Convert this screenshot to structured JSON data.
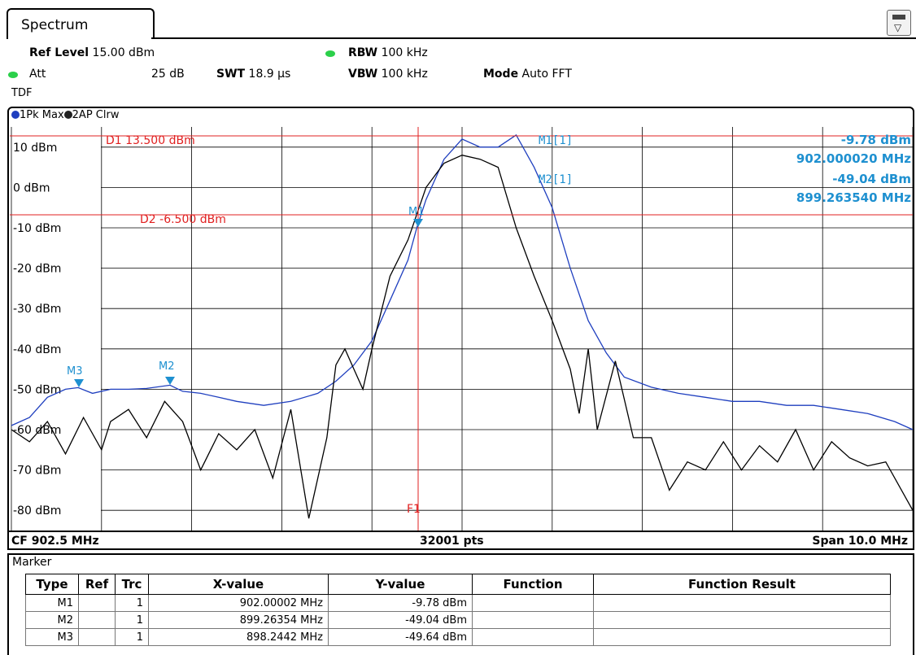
{
  "tab": {
    "label": "Spectrum"
  },
  "header": {
    "ref_level_label": "Ref Level",
    "ref_level_value": "15.00 dBm",
    "att_label": "Att",
    "att_value": "25 dB",
    "swt_label": "SWT",
    "swt_value": "18.9 µs",
    "rbw_label": "RBW",
    "rbw_value": "100 kHz",
    "vbw_label": "VBW",
    "vbw_value": "100 kHz",
    "mode_label": "Mode",
    "mode_value": "Auto FFT",
    "tdf": "TDF"
  },
  "traces": {
    "t1": "1Pk Max",
    "t2": "2AP Clrw",
    "t1_color": "#1f3fbf",
    "t2_color": "#000000"
  },
  "y_ticks": [
    "10 dBm",
    "0 dBm",
    "-10 dBm",
    "-20 dBm",
    "-30 dBm",
    "-40 dBm",
    "-50 dBm",
    "-60 dBm",
    "-70 dBm",
    "-80 dBm"
  ],
  "lines": {
    "d1": "D1  13.500 dBm",
    "d2": "D2  -6.500 dBm",
    "f1": "F1"
  },
  "marker_readout": {
    "m1_label": "M1[1]",
    "m1_level": "-9.78 dBm",
    "m1_freq": "902.000020 MHz",
    "m2_label": "M2[1]",
    "m2_level": "-49.04 dBm",
    "m2_freq": "899.263540 MHz"
  },
  "markers_on_plot": {
    "m1": "M1",
    "m2": "M2",
    "m3": "M3"
  },
  "bottom": {
    "cf": "CF 902.5 MHz",
    "pts": "32001 pts",
    "span": "Span 10.0 MHz"
  },
  "marker_table": {
    "title": "Marker",
    "headers": [
      "Type",
      "Ref",
      "Trc",
      "X-value",
      "Y-value",
      "Function",
      "Function Result"
    ],
    "rows": [
      [
        "M1",
        "",
        "1",
        "902.00002 MHz",
        "-9.78 dBm",
        "",
        ""
      ],
      [
        "M2",
        "",
        "1",
        "899.26354 MHz",
        "-49.04 dBm",
        "",
        ""
      ],
      [
        "M3",
        "",
        "1",
        "898.2442 MHz",
        "-49.64 dBm",
        "",
        ""
      ]
    ]
  },
  "colors": {
    "limit_line": "#e02020",
    "marker": "#1e90d0",
    "grid": "#000000"
  },
  "chart_data": {
    "type": "line",
    "x_unit": "MHz",
    "y_unit": "dBm",
    "xlim": [
      897.5,
      907.5
    ],
    "ylim": [
      -85,
      15
    ],
    "series": [
      {
        "name": "1Pk Max",
        "color": "#1f3fbf",
        "x": [
          897.5,
          897.7,
          897.9,
          898.1,
          898.24,
          898.4,
          898.6,
          898.8,
          899.0,
          899.26,
          899.4,
          899.6,
          899.8,
          900.0,
          900.3,
          900.6,
          900.9,
          901.1,
          901.3,
          901.5,
          901.7,
          901.9,
          902.0,
          902.1,
          902.3,
          902.5,
          902.7,
          902.9,
          903.1,
          903.3,
          903.5,
          903.7,
          903.9,
          904.1,
          904.3,
          904.6,
          904.9,
          905.2,
          905.5,
          905.8,
          906.1,
          906.4,
          906.7,
          907.0,
          907.3,
          907.5
        ],
        "y": [
          -59,
          -57,
          -52,
          -50,
          -49.6,
          -51,
          -50,
          -50,
          -49.8,
          -49,
          -50.5,
          -51,
          -52,
          -53,
          -54,
          -53,
          -51,
          -48,
          -44,
          -38,
          -28,
          -18,
          -9.8,
          -3,
          7,
          12,
          10,
          10,
          13,
          5,
          -5,
          -20,
          -33,
          -41,
          -47,
          -49.5,
          -51,
          -52,
          -53,
          -53,
          -54,
          -54,
          -55,
          -56,
          -58,
          -60
        ]
      },
      {
        "name": "2AP Clrw",
        "color": "#000000",
        "x": [
          897.5,
          897.7,
          897.9,
          898.1,
          898.3,
          898.5,
          898.6,
          898.8,
          899.0,
          899.2,
          899.4,
          899.6,
          899.8,
          900.0,
          900.2,
          900.4,
          900.6,
          900.8,
          901.0,
          901.1,
          901.2,
          901.3,
          901.4,
          901.5,
          901.7,
          901.9,
          902.1,
          902.3,
          902.5,
          902.7,
          902.9,
          903.1,
          903.3,
          903.5,
          903.7,
          903.8,
          903.9,
          904.0,
          904.2,
          904.4,
          904.6,
          904.8,
          905.0,
          905.2,
          905.4,
          905.6,
          905.8,
          906.0,
          906.2,
          906.4,
          906.6,
          906.8,
          907.0,
          907.2,
          907.5
        ],
        "y": [
          -60,
          -63,
          -58,
          -66,
          -57,
          -65,
          -58,
          -55,
          -62,
          -53,
          -58,
          -70,
          -61,
          -65,
          -60,
          -72,
          -55,
          -82,
          -62,
          -44,
          -40,
          -45,
          -50,
          -40,
          -22,
          -13,
          0,
          6,
          8,
          7,
          5,
          -10,
          -22,
          -33,
          -45,
          -56,
          -40,
          -60,
          -43,
          -62,
          -62,
          -75,
          -68,
          -70,
          -63,
          -70,
          -64,
          -68,
          -60,
          -70,
          -63,
          -67,
          -69,
          -68,
          -80
        ]
      }
    ]
  }
}
